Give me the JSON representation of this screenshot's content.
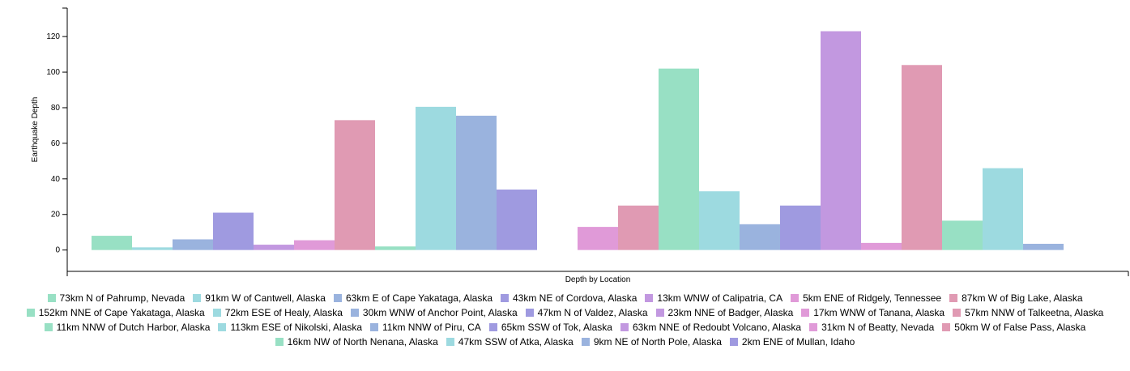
{
  "chart_data": {
    "type": "bar",
    "xlabel": "Depth by Location",
    "ylabel": "Earthquake Depth",
    "categories": [
      "73km N of Pahrump, Nevada",
      "91km W of Cantwell, Alaska",
      "63km E of Cape Yakataga, Alaska",
      "43km NE of Cordova, Alaska",
      "13km WNW of Calipatria, CA",
      "5km ENE of Ridgely, Tennessee",
      "87km W of Big Lake, Alaska",
      "152km NNE of Cape Yakataga, Alaska",
      "72km ESE of Healy, Alaska",
      "30km WNW of Anchor Point, Alaska",
      "47km N of Valdez, Alaska",
      "23km NNE of Badger, Alaska",
      "17km WNW of Tanana, Alaska",
      "57km NNW of Talkeetna, Alaska",
      "11km NNW of Dutch Harbor, Alaska",
      "113km ESE of Nikolski, Alaska",
      "11km NNW of Piru, CA",
      "65km SSW of Tok, Alaska",
      "63km NNE of Redoubt Volcano, Alaska",
      "31km N of Beatty, Nevada",
      "50km W of False Pass, Alaska",
      "16km NW of North Nenana, Alaska",
      "47km SSW of Atka, Alaska",
      "9km NE of North Pole, Alaska",
      "2km ENE of Mullan, Idaho"
    ],
    "values": [
      8,
      1.5,
      6,
      21,
      3,
      5.5,
      73,
      2,
      80.5,
      75.5,
      34,
      0,
      13,
      25,
      102,
      33,
      14.5,
      25,
      123,
      4,
      104,
      16.5,
      46,
      3.5,
      0
    ],
    "palette": [
      "#98e0c4",
      "#9ddae0",
      "#9ab3de",
      "#9f9ae0",
      "#c298e0",
      "#e09ad8",
      "#e09ab3"
    ],
    "ylim": [
      -12,
      136
    ],
    "yticks": [
      0,
      20,
      40,
      60,
      80,
      100,
      120
    ]
  }
}
